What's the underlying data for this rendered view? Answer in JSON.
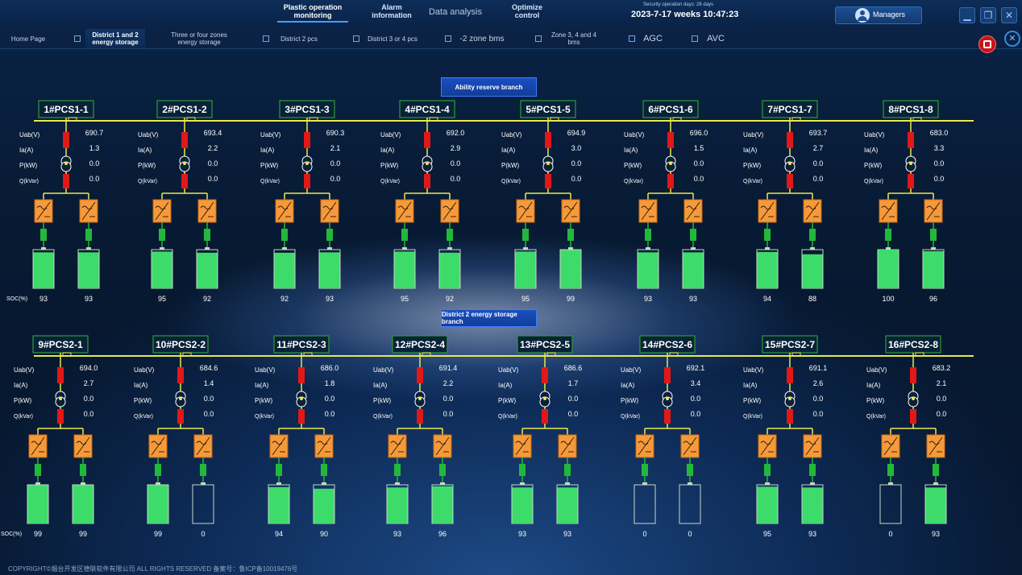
{
  "header": {
    "nav": [
      {
        "label": "Plastic operation monitoring",
        "active": true
      },
      {
        "label": "Alarm information",
        "active": false
      },
      {
        "label": "Data analysis",
        "active": false
      },
      {
        "label": "Optimize control",
        "active": false
      }
    ],
    "security_days": "Security operation days: 26 days",
    "datetime": "2023-7-17 weeks 10:47:23",
    "user": "Managers"
  },
  "tabs": [
    {
      "label": "Home Page"
    },
    {
      "label": "District 1 and 2 energy storage"
    },
    {
      "label": "Three or four zones energy storage"
    },
    {
      "label": "District 2 pcs"
    },
    {
      "label": "District 3 or 4 pcs"
    },
    {
      "label": "-2 zone bms"
    },
    {
      "label": "Zone 3, 4 and 4 bms"
    },
    {
      "label": "AGC"
    },
    {
      "label": "AVC"
    }
  ],
  "branch1_title": "Ability reserve branch",
  "branch2_title": "District 2 energy storage branch",
  "row_labels": [
    "Uab(V)",
    "Ia(A)",
    "P(kW)",
    "Q(kVar)"
  ],
  "soc_label": "SOC(%)",
  "colors": {
    "bus": "#e8e84a",
    "breaker": "#e01818",
    "pcs": "#f59a3c",
    "link": "#22b83a",
    "battery": "#3ddc6a"
  },
  "groups": [
    {
      "name": "1#PCS1-1",
      "uab": "690.7",
      "ia": "1.3",
      "p": "0.0",
      "q": "0.0",
      "soc": [
        "93",
        "93"
      ]
    },
    {
      "name": "2#PCS1-2",
      "uab": "693.4",
      "ia": "2.2",
      "p": "0.0",
      "q": "0.0",
      "soc": [
        "95",
        "92"
      ]
    },
    {
      "name": "3#PCS1-3",
      "uab": "690.3",
      "ia": "2.1",
      "p": "0.0",
      "q": "0.0",
      "soc": [
        "92",
        "93"
      ]
    },
    {
      "name": "4#PCS1-4",
      "uab": "692.0",
      "ia": "2.9",
      "p": "0.0",
      "q": "0.0",
      "soc": [
        "95",
        "92"
      ]
    },
    {
      "name": "5#PCS1-5",
      "uab": "694.9",
      "ia": "3.0",
      "p": "0.0",
      "q": "0.0",
      "soc": [
        "95",
        "99"
      ]
    },
    {
      "name": "6#PCS1-6",
      "uab": "696.0",
      "ia": "1.5",
      "p": "0.0",
      "q": "0.0",
      "soc": [
        "93",
        "93"
      ]
    },
    {
      "name": "7#PCS1-7",
      "uab": "693.7",
      "ia": "2.7",
      "p": "0.0",
      "q": "0.0",
      "soc": [
        "94",
        "88"
      ]
    },
    {
      "name": "8#PCS1-8",
      "uab": "683.0",
      "ia": "3.3",
      "p": "0.0",
      "q": "0.0",
      "soc": [
        "100",
        "96"
      ]
    },
    {
      "name": "9#PCS2-1",
      "uab": "694.0",
      "ia": "2.7",
      "p": "0.0",
      "q": "0.0",
      "soc": [
        "99",
        "99"
      ]
    },
    {
      "name": "10#PCS2-2",
      "uab": "684.6",
      "ia": "1.4",
      "p": "0.0",
      "q": "0.0",
      "soc": [
        "99",
        "0"
      ]
    },
    {
      "name": "11#PCS2-3",
      "uab": "686.0",
      "ia": "1.8",
      "p": "0.0",
      "q": "0.0",
      "soc": [
        "94",
        "90"
      ]
    },
    {
      "name": "12#PCS2-4",
      "uab": "691.4",
      "ia": "2.2",
      "p": "0.0",
      "q": "0.0",
      "soc": [
        "93",
        "96"
      ]
    },
    {
      "name": "13#PCS2-5",
      "uab": "686.6",
      "ia": "1.7",
      "p": "0.0",
      "q": "0.0",
      "soc": [
        "93",
        "93"
      ]
    },
    {
      "name": "14#PCS2-6",
      "uab": "692.1",
      "ia": "3.4",
      "p": "0.0",
      "q": "0.0",
      "soc": [
        "0",
        "0"
      ]
    },
    {
      "name": "15#PCS2-7",
      "uab": "691.1",
      "ia": "2.6",
      "p": "0.0",
      "q": "0.0",
      "soc": [
        "95",
        "93"
      ]
    },
    {
      "name": "16#PCS2-8",
      "uab": "683.2",
      "ia": "2.1",
      "p": "0.0",
      "q": "0.0",
      "soc": [
        "0",
        "93"
      ]
    }
  ],
  "footer": "COPYRIGHT©烟台开发区德联软件有限公司 ALL RIGHTS RESERVED 备案号：鲁ICP备10019476号"
}
